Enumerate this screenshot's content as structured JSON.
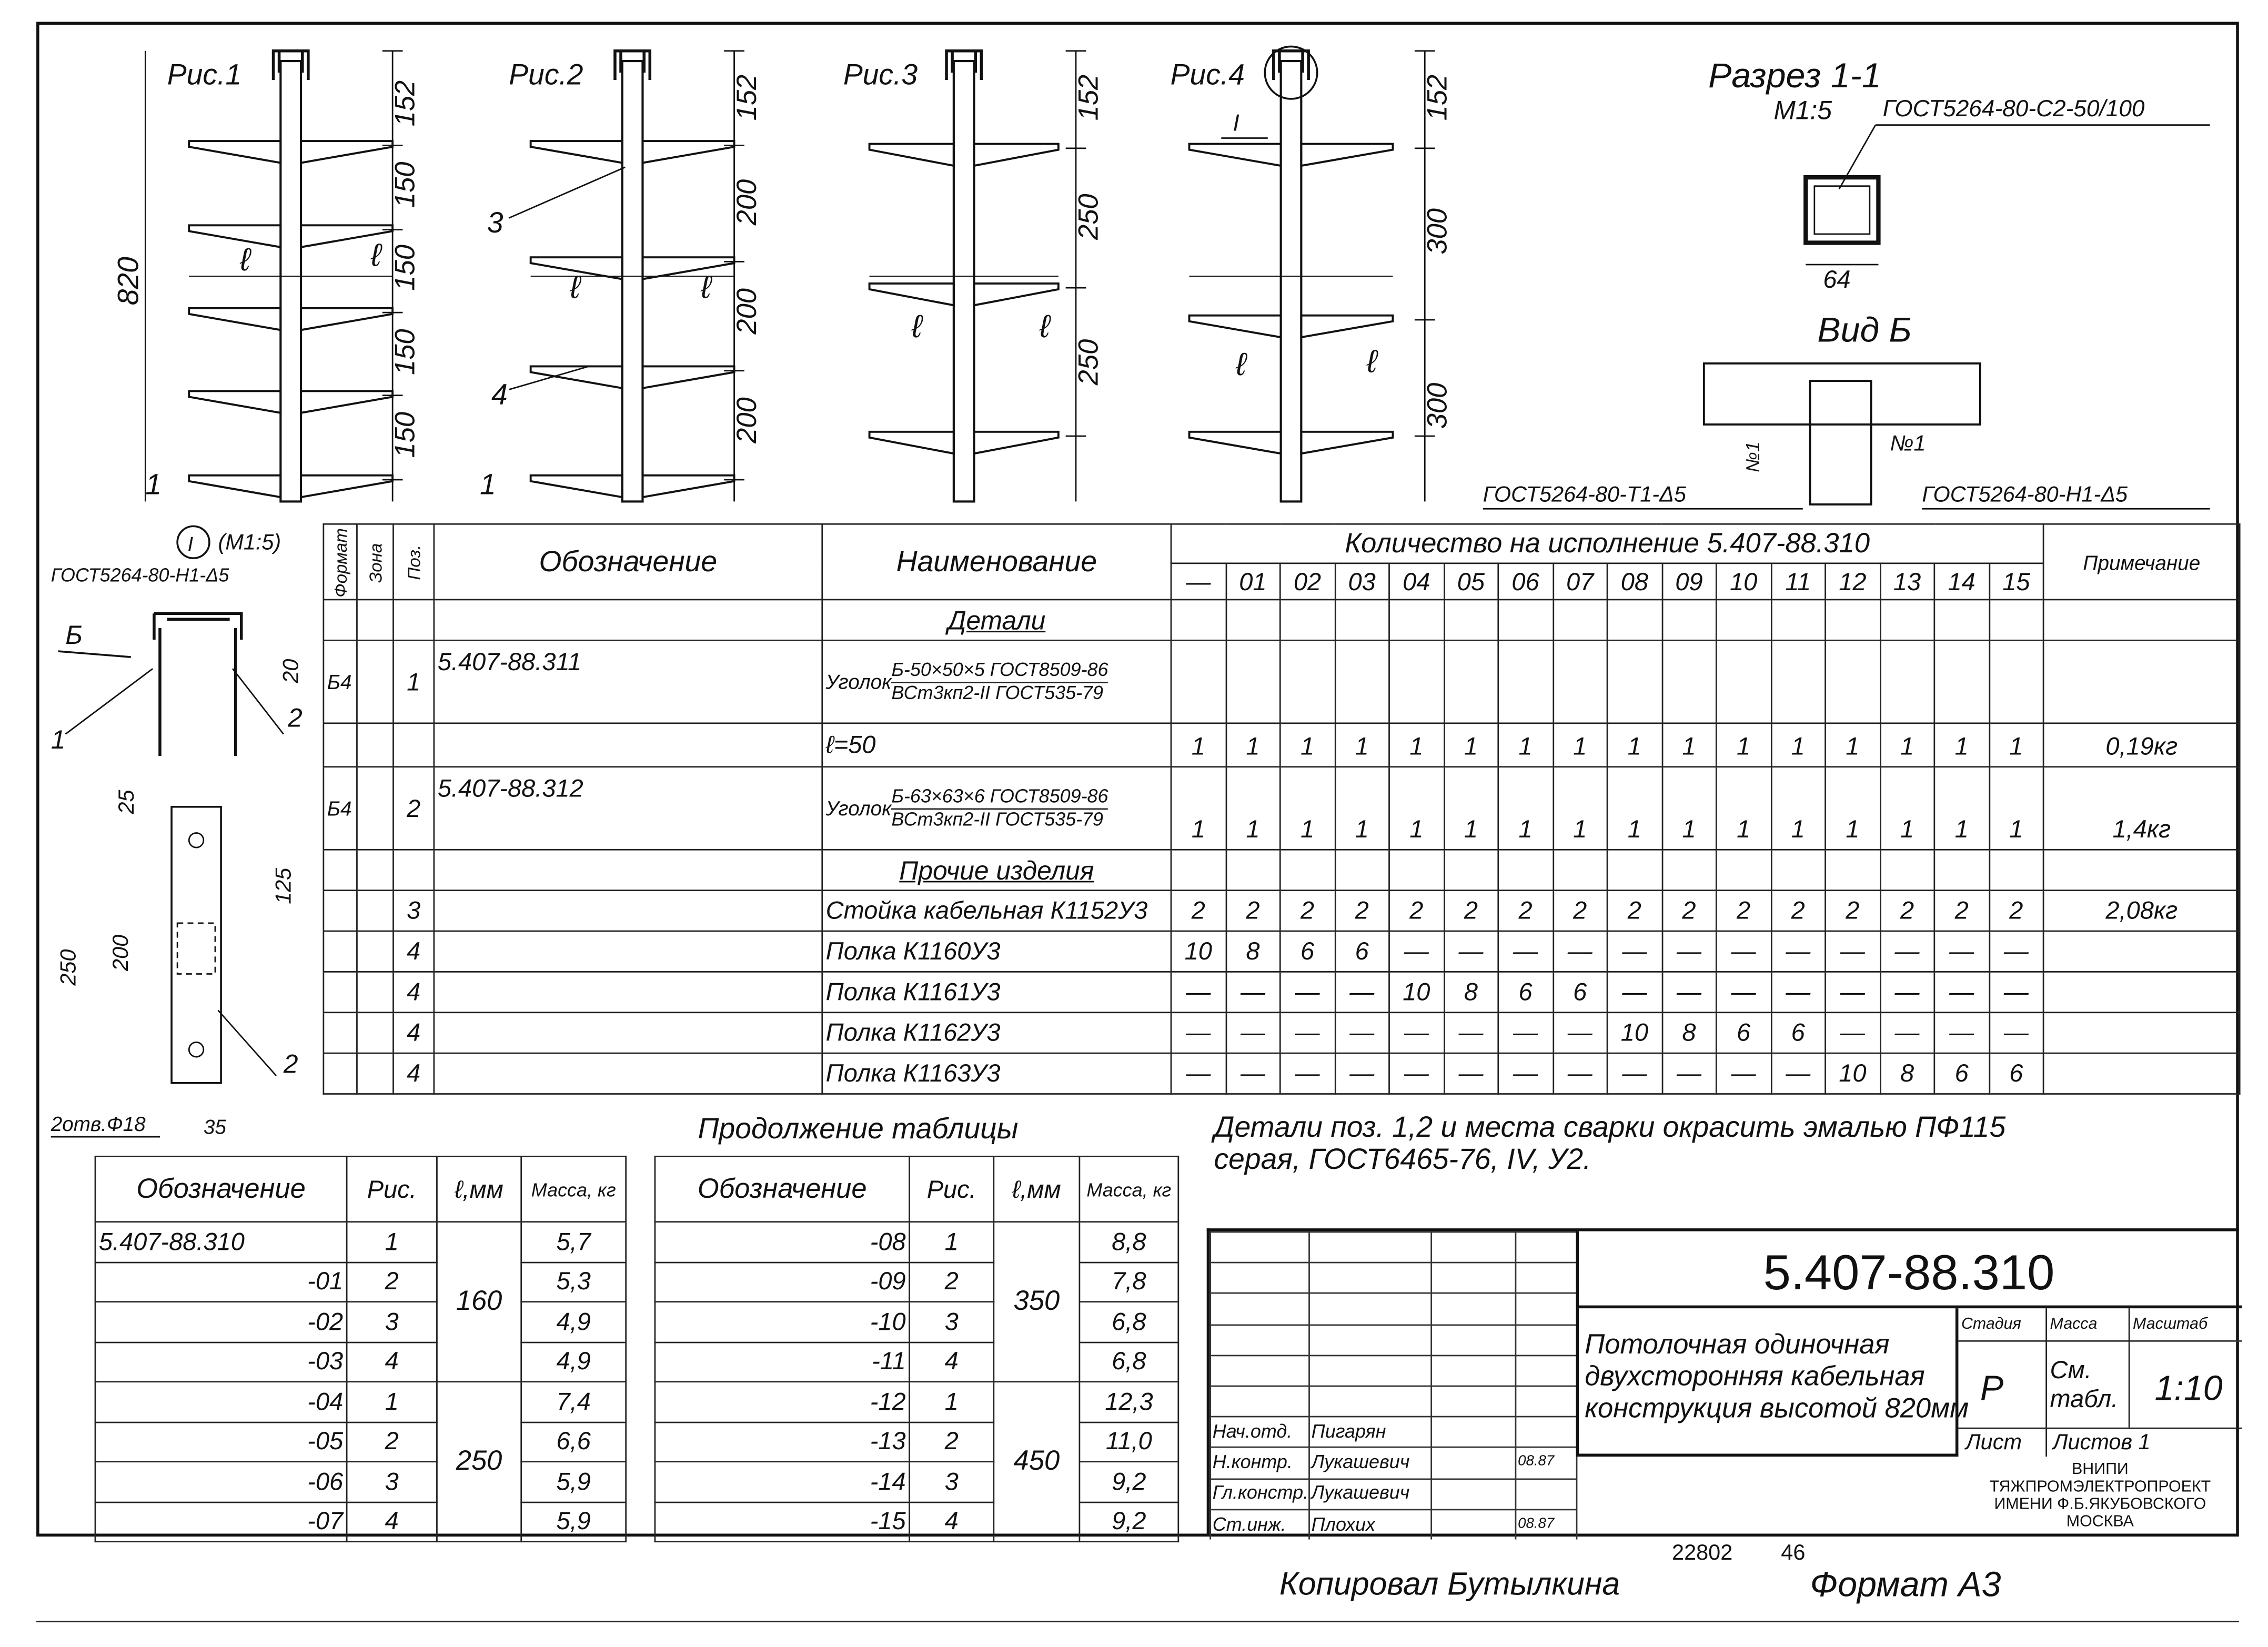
{
  "figures": {
    "fig1": {
      "label": "Рис.1",
      "dims": [
        "152",
        "150",
        "150",
        "150",
        "150"
      ],
      "height": "820",
      "l": "ℓ",
      "mark": "1"
    },
    "fig2": {
      "label": "Рис.2",
      "dims": [
        "152",
        "200",
        "200",
        "200"
      ],
      "l": "ℓ",
      "mark": "1",
      "callouts": [
        "3",
        "4"
      ]
    },
    "fig3": {
      "label": "Рис.3",
      "dims": [
        "152",
        "250",
        "250"
      ],
      "l": "ℓ"
    },
    "fig4": {
      "label": "Рис.4",
      "dims": [
        "152",
        "300",
        "300"
      ],
      "l": "ℓ",
      "node": "I"
    },
    "section": {
      "title": "Разрез 1-1",
      "scale": "М1:5",
      "weld": "ГОСТ5264-80-С2-50/100",
      "width": "64"
    },
    "view": {
      "title": "Вид Б",
      "weld_left": "ГОСТ5264-80-Т1-Δ5",
      "weld_right": "ГОСТ5264-80-Н1-Δ5",
      "mark1": "№1",
      "mark2": "№1"
    },
    "node": {
      "title": "I",
      "scale": "(М1:5)",
      "weld": "ГОСТ5264-80-Н1-Δ5",
      "arrow": "Б",
      "dims": [
        "20",
        "25",
        "125",
        "200",
        "250",
        "35"
      ],
      "holes": "2отв.Ф18",
      "callouts": [
        "1",
        "2",
        "2"
      ]
    }
  },
  "spec": {
    "headers": {
      "format": "Формат",
      "zone": "Зона",
      "pos": "Поз.",
      "designation": "Обозначение",
      "name": "Наименование",
      "qty": "Количество на исполнение 5.407-88.310",
      "note": "Примечание"
    },
    "variants": [
      "—",
      "01",
      "02",
      "03",
      "04",
      "05",
      "06",
      "07",
      "08",
      "09",
      "10",
      "11",
      "12",
      "13",
      "14",
      "15"
    ],
    "rows": [
      {
        "section": "Детали"
      },
      {
        "format": "Б4",
        "pos": "1",
        "designation": "5.407-88.311",
        "name_prefix": "Уголок",
        "name_top": "Б-50×50×5 ГОСТ8509-86",
        "name_bottom": "ВСт3кп2-II ГОСТ535-79",
        "tall": true,
        "qty": []
      },
      {
        "name": "ℓ=50",
        "qty": [
          "1",
          "1",
          "1",
          "1",
          "1",
          "1",
          "1",
          "1",
          "1",
          "1",
          "1",
          "1",
          "1",
          "1",
          "1",
          "1"
        ],
        "note": "0,19кг"
      },
      {
        "format": "Б4",
        "pos": "2",
        "designation": "5.407-88.312",
        "name_prefix": "Уголок",
        "name_top": "Б-63×63×6 ГОСТ8509-86",
        "name_bottom": "ВСт3кп2-II ГОСТ535-79",
        "tall": true,
        "qty": [
          "1",
          "1",
          "1",
          "1",
          "1",
          "1",
          "1",
          "1",
          "1",
          "1",
          "1",
          "1",
          "1",
          "1",
          "1",
          "1"
        ],
        "note": "1,4кг"
      },
      {
        "section": "Прочие изделия"
      },
      {
        "pos": "3",
        "name": "Стойка кабельная К1152У3",
        "qty": [
          "2",
          "2",
          "2",
          "2",
          "2",
          "2",
          "2",
          "2",
          "2",
          "2",
          "2",
          "2",
          "2",
          "2",
          "2",
          "2"
        ],
        "note": "2,08кг"
      },
      {
        "pos": "4",
        "name": "Полка К1160У3",
        "qty": [
          "10",
          "8",
          "6",
          "6",
          "—",
          "—",
          "—",
          "—",
          "—",
          "—",
          "—",
          "—",
          "—",
          "—",
          "—",
          "—"
        ]
      },
      {
        "pos": "4",
        "name": "Полка К1161У3",
        "qty": [
          "—",
          "—",
          "—",
          "—",
          "10",
          "8",
          "6",
          "6",
          "—",
          "—",
          "—",
          "—",
          "—",
          "—",
          "—",
          "—"
        ]
      },
      {
        "pos": "4",
        "name": "Полка К1162У3",
        "qty": [
          "—",
          "—",
          "—",
          "—",
          "—",
          "—",
          "—",
          "—",
          "10",
          "8",
          "6",
          "6",
          "—",
          "—",
          "—",
          "—"
        ]
      },
      {
        "pos": "4",
        "name": "Полка К1163У3",
        "qty": [
          "—",
          "—",
          "—",
          "—",
          "—",
          "—",
          "—",
          "—",
          "—",
          "—",
          "—",
          "—",
          "10",
          "8",
          "6",
          "6"
        ]
      }
    ]
  },
  "continuation": {
    "title": "Продолжение таблицы",
    "headers": {
      "designation": "Обозначение",
      "fig": "Рис.",
      "l": "ℓ,мм",
      "mass": "Масса, кг"
    },
    "left": [
      {
        "designation": "5.407-88.310",
        "fig": "1",
        "l": "160",
        "mass": "5,7"
      },
      {
        "designation": "-01",
        "fig": "2",
        "mass": "5,3"
      },
      {
        "designation": "-02",
        "fig": "3",
        "mass": "4,9"
      },
      {
        "designation": "-03",
        "fig": "4",
        "mass": "4,9"
      },
      {
        "designation": "-04",
        "fig": "1",
        "l": "250",
        "mass": "7,4"
      },
      {
        "designation": "-05",
        "fig": "2",
        "mass": "6,6"
      },
      {
        "designation": "-06",
        "fig": "3",
        "mass": "5,9"
      },
      {
        "designation": "-07",
        "fig": "4",
        "mass": "5,9"
      }
    ],
    "right": [
      {
        "designation": "-08",
        "fig": "1",
        "l": "350",
        "mass": "8,8"
      },
      {
        "designation": "-09",
        "fig": "2",
        "mass": "7,8"
      },
      {
        "designation": "-10",
        "fig": "3",
        "mass": "6,8"
      },
      {
        "designation": "-11",
        "fig": "4",
        "mass": "6,8"
      },
      {
        "designation": "-12",
        "fig": "1",
        "l": "450",
        "mass": "12,3"
      },
      {
        "designation": "-13",
        "fig": "2",
        "mass": "11,0"
      },
      {
        "designation": "-14",
        "fig": "3",
        "mass": "9,2"
      },
      {
        "designation": "-15",
        "fig": "4",
        "mass": "9,2"
      }
    ]
  },
  "notes": {
    "line1": "Детали поз. 1,2 и места сварки окрасить эмалью ПФ115",
    "line2": "серая, ГОСТ6465-76, IV, У2."
  },
  "title_block": {
    "designation": "5.407-88.310",
    "name_lines": [
      "Потолочная одиночная",
      "двухсторонняя кабельная",
      "конструкция высотой 820мм"
    ],
    "stage_label": "Стадия",
    "mass_label": "Масса",
    "scale_label": "Масштаб",
    "stage": "Р",
    "mass": "См. табл.",
    "scale": "1:10",
    "sheet_label": "Лист",
    "sheets_label": "Листов 1",
    "org_lines": [
      "ВНИПИ",
      "ТЯЖПРОМЭЛЕКТРОПРОЕКТ",
      "ИМЕНИ Ф.Б.ЯКУБОВСКОГО",
      "МОСКВА"
    ],
    "signatures": [
      {
        "role": "Нач.отд.",
        "name": "Пигарян",
        "date": ""
      },
      {
        "role": "Н.контр.",
        "name": "Лукашевич",
        "date": "08.87"
      },
      {
        "role": "Гл.констр.",
        "name": "Лукашевич",
        "date": ""
      },
      {
        "role": "Ст.инж.",
        "name": "Плохих",
        "date": "08.87"
      }
    ]
  },
  "footer": {
    "copied": "Копировал Бутылкина",
    "number": "22802",
    "sheet_no": "46",
    "format": "Формат А3"
  }
}
